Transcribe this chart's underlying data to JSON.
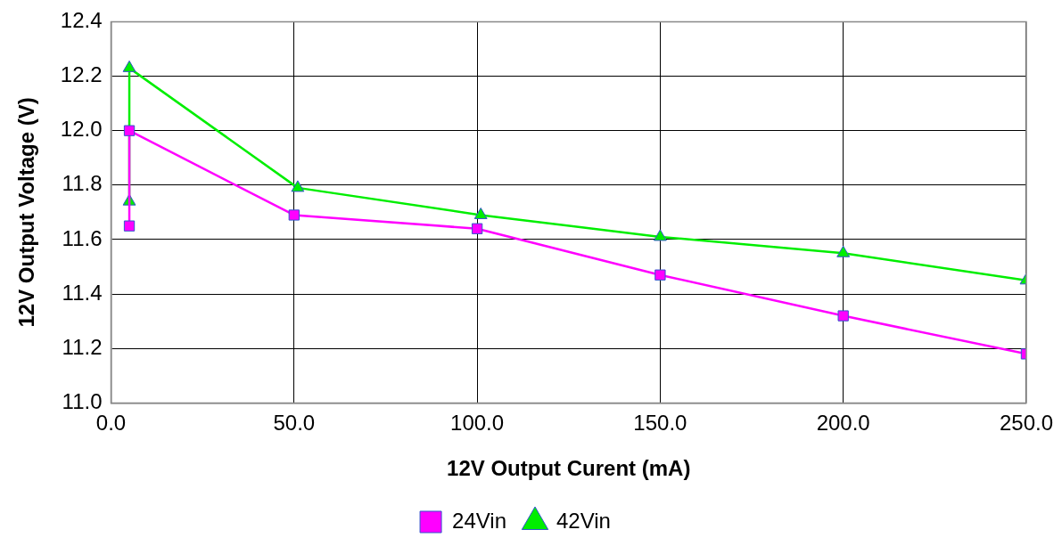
{
  "chart_data": {
    "type": "line",
    "xlabel": "12V Output Curent (mA)",
    "ylabel": "12V Output Voltage (V)",
    "xlim": [
      0,
      250
    ],
    "xticks": [
      {
        "value": 0,
        "label": "0.0"
      },
      {
        "value": 50,
        "label": "50.0"
      },
      {
        "value": 100,
        "label": "100.0"
      },
      {
        "value": 150,
        "label": "150.0"
      },
      {
        "value": 200,
        "label": "200.0"
      },
      {
        "value": 250,
        "label": "250.0"
      }
    ],
    "ylim": [
      11.0,
      12.4
    ],
    "yticks": [
      {
        "value": 11.0,
        "label": "11.0"
      },
      {
        "value": 11.2,
        "label": "11.2"
      },
      {
        "value": 11.4,
        "label": "11.4"
      },
      {
        "value": 11.6,
        "label": "11.6"
      },
      {
        "value": 11.8,
        "label": "11.8"
      },
      {
        "value": 12.0,
        "label": "12.0"
      },
      {
        "value": 12.2,
        "label": "12.2"
      },
      {
        "value": 12.4,
        "label": "12.4"
      }
    ],
    "grid": true,
    "legend": "bottom",
    "line_style": "solid",
    "series": [
      {
        "name": "24Vin",
        "color": "#ff00ff",
        "marker": "square",
        "x": [
          5,
          5,
          50,
          100,
          150,
          200,
          250
        ],
        "values": [
          11.65,
          12.0,
          11.69,
          11.64,
          11.47,
          11.32,
          11.18
        ]
      },
      {
        "name": "42Vin",
        "color": "#00ee00",
        "marker": "triangle",
        "x": [
          5,
          5,
          51,
          101,
          150,
          200,
          250
        ],
        "values": [
          11.74,
          12.23,
          11.79,
          11.69,
          11.61,
          11.55,
          11.45
        ]
      }
    ]
  }
}
